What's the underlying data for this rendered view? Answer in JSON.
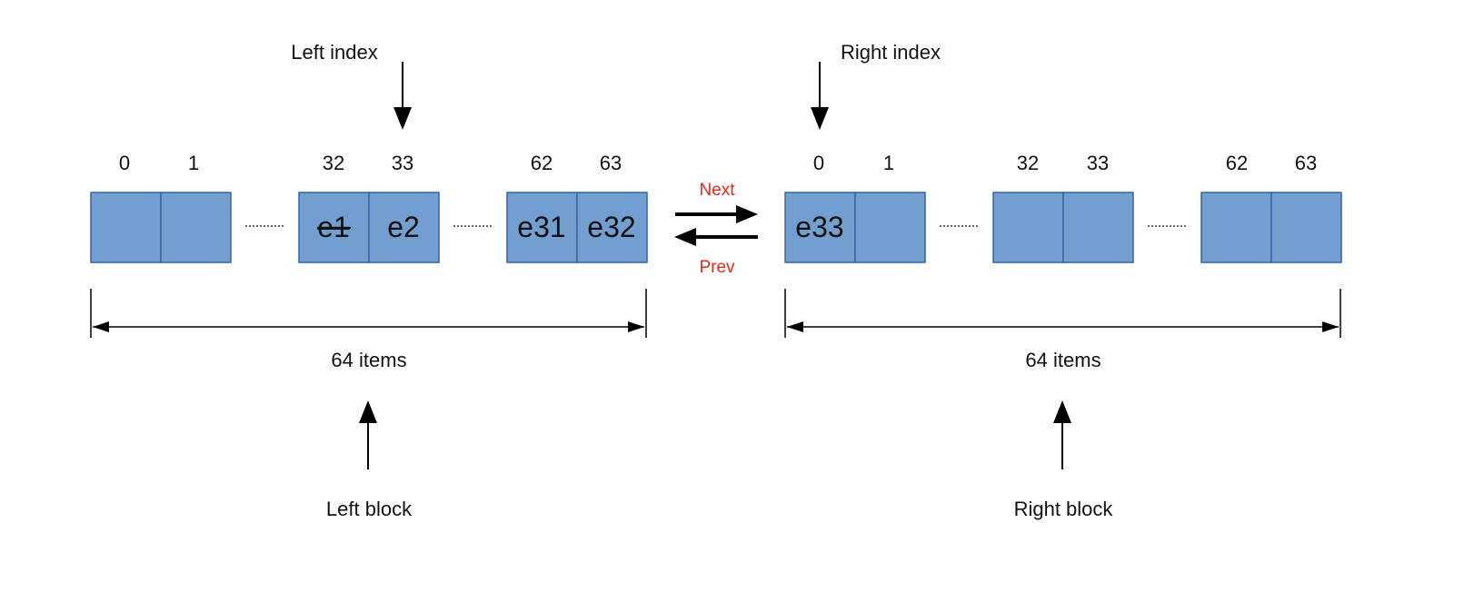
{
  "left_block": {
    "index_label": "Left index",
    "block_label": "Left block",
    "size_label": "64 items",
    "indices": [
      "0",
      "1",
      "32",
      "33",
      "62",
      "63"
    ],
    "cells": [
      "",
      "",
      "e1",
      "e2",
      "e31",
      "e32"
    ],
    "struck_cell": "e1"
  },
  "right_block": {
    "index_label": "Right index",
    "block_label": "Right block",
    "size_label": "64 items",
    "indices": [
      "0",
      "1",
      "32",
      "33",
      "62",
      "63"
    ],
    "cells": [
      "e33",
      "",
      "",
      "",
      "",
      ""
    ]
  },
  "links": {
    "next_label": "Next",
    "prev_label": "Prev"
  },
  "colors": {
    "cell_fill": "#729fcf",
    "cell_stroke": "#3465a4",
    "link_text": "#e8281c"
  }
}
